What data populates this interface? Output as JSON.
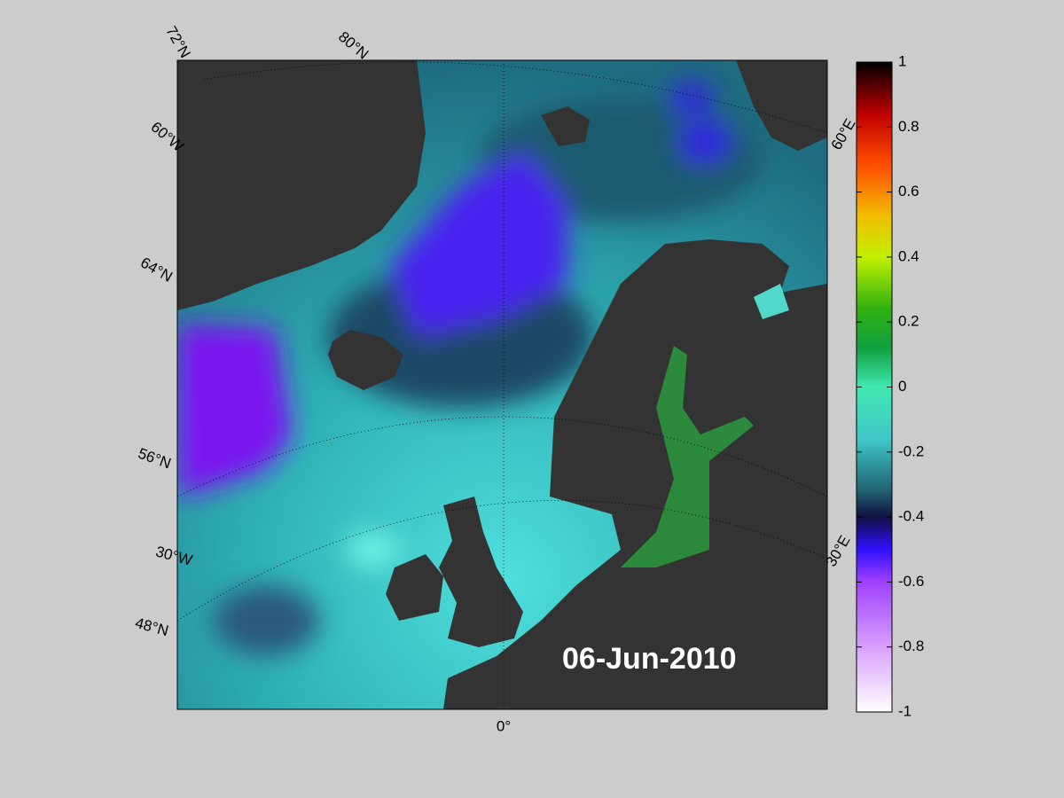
{
  "map": {
    "date": "06-Jun-2010",
    "graticule_labels": [
      "72°N",
      "80°N",
      "60°W",
      "64°N",
      "56°N",
      "30°W",
      "48°N",
      "0°",
      "60°E",
      "30°E"
    ],
    "colorbar": {
      "lim": [
        -1,
        1
      ],
      "ticks": [
        1,
        0.8,
        0.6,
        0.4,
        0.2,
        0,
        -0.2,
        -0.4,
        -0.6,
        -0.8,
        -1
      ]
    }
  }
}
